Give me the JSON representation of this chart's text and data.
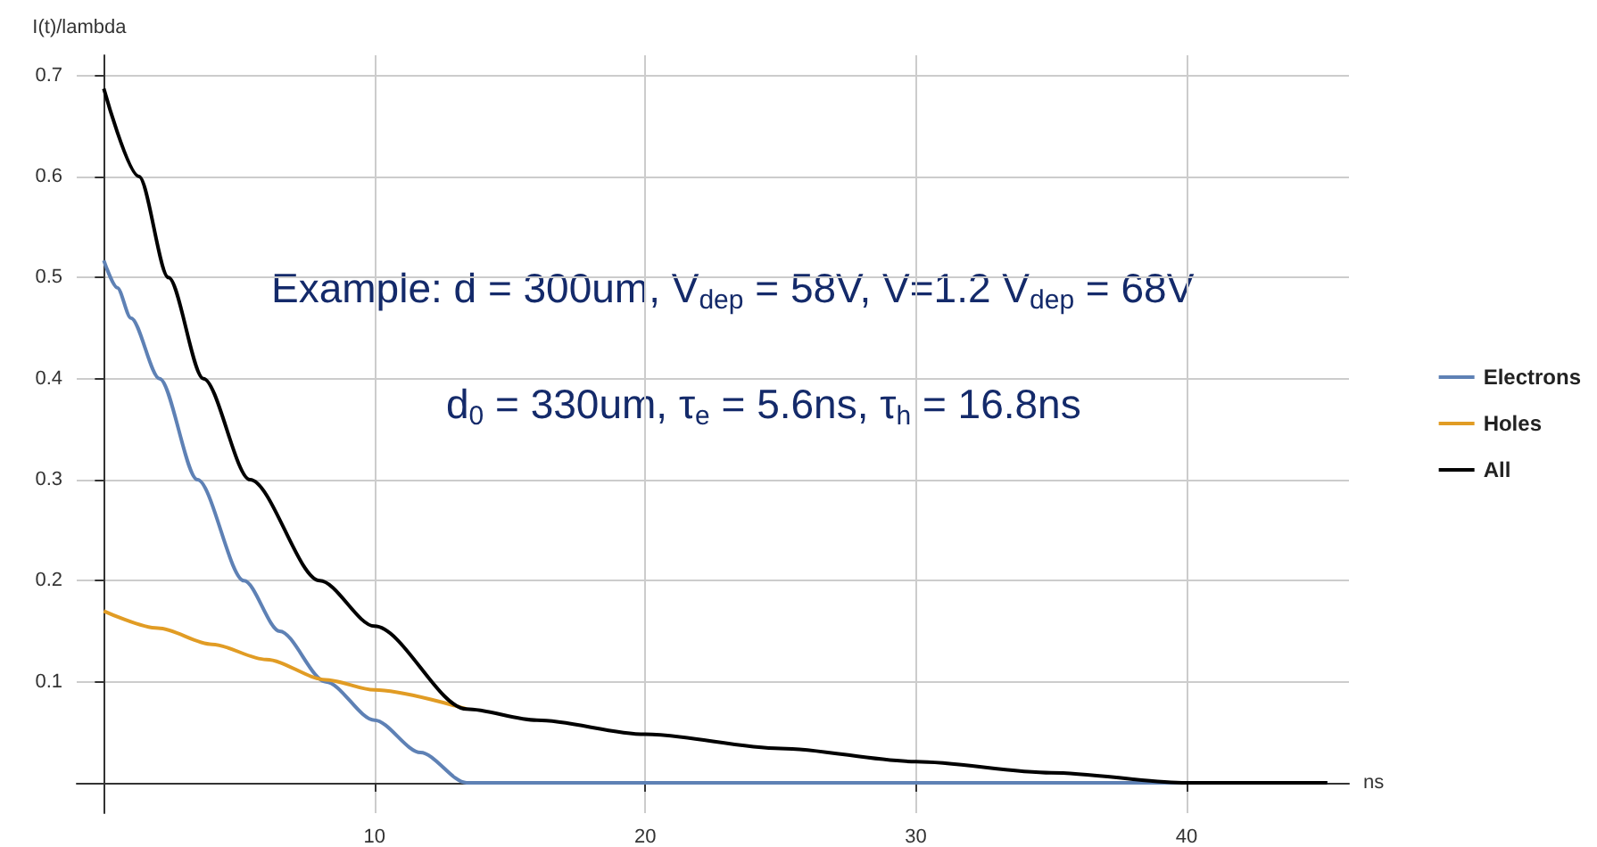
{
  "chart_data": {
    "type": "line",
    "xlabel": "ns",
    "ylabel": "I(t)/lambda",
    "annotations": [
      "Example: d = 300um, V$_{dep}$ = 58V, V=1.2 V$_{dep}$ = 68V",
      "d$_{0}$ = 330um, τ$_{e}$ = 5.6ns, τ$_{h}$ = 16.8ns"
    ],
    "series": [
      {
        "name": "Electrons",
        "color": "#5e81b5",
        "x": [
          0,
          0.5,
          1,
          2.06,
          3.46,
          5.18,
          6.5,
          8.2,
          10,
          11.7,
          13.4,
          45.2
        ],
        "values": [
          0.517,
          0.49,
          0.46,
          0.4,
          0.3,
          0.2,
          0.15,
          0.1,
          0.062,
          0.03,
          0,
          0
        ]
      },
      {
        "name": "Holes",
        "color": "#e19c24",
        "x": [
          0,
          2,
          4,
          6,
          8.2,
          10,
          13.4
        ],
        "values": [
          0.17,
          0.153,
          0.137,
          0.122,
          0.102,
          0.092,
          0.073
        ]
      },
      {
        "name": "All",
        "color": "#000000",
        "x": [
          0,
          1.3,
          2.39,
          3.68,
          5.4,
          7.98,
          10,
          13.4,
          16,
          20,
          25,
          30,
          35,
          40,
          45.2
        ],
        "values": [
          0.687,
          0.6,
          0.5,
          0.4,
          0.3,
          0.2,
          0.155,
          0.073,
          0.062,
          0.048,
          0.034,
          0.021,
          0.01,
          0,
          0
        ]
      }
    ],
    "xlim": [
      -1,
      46
    ],
    "xticks": [
      10,
      20,
      30,
      40
    ],
    "ylim": [
      -0.03,
      0.72
    ],
    "yticks": [
      0.1,
      0.2,
      0.3,
      0.4,
      0.5,
      0.6,
      0.7
    ],
    "grid": true,
    "legend": "right",
    "marker": "none",
    "line_style": "solid"
  }
}
